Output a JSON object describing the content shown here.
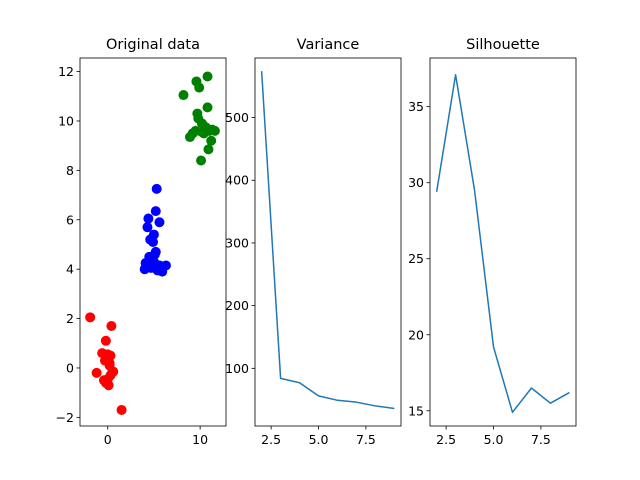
{
  "chart_data": [
    {
      "type": "scatter",
      "title": "Original data",
      "xlabel": "",
      "ylabel": "",
      "xlim": [
        -3.0,
        12.8
      ],
      "ylim": [
        -2.35,
        12.55
      ],
      "xticks": [
        0,
        10
      ],
      "yticks": [
        -2,
        0,
        2,
        4,
        6,
        8,
        10,
        12
      ],
      "series": [
        {
          "color": "#ff0000",
          "x": [
            -1.9,
            -1.2,
            -0.6,
            -0.2,
            0.4,
            0.3,
            -0.1,
            0.2,
            0.0,
            -0.4,
            0.5,
            -0.2,
            0.1,
            0.3,
            -0.3,
            0.0,
            0.2,
            0.6,
            1.5,
            -0.1
          ],
          "y": [
            2.05,
            -0.2,
            0.6,
            1.1,
            1.7,
            0.5,
            0.4,
            0.2,
            0.55,
            -0.5,
            -0.15,
            -0.6,
            -0.7,
            -0.3,
            0.3,
            -0.45,
            0.1,
            -0.15,
            -1.7,
            0.45
          ]
        },
        {
          "color": "#0000ff",
          "x": [
            5.3,
            5.2,
            4.4,
            4.3,
            5.6,
            4.6,
            5.0,
            4.9,
            4.5,
            4.1,
            5.1,
            5.6,
            6.3,
            5.9,
            5.4,
            4.8,
            4.0,
            5.2,
            4.7,
            5.0
          ],
          "y": [
            7.25,
            6.35,
            6.05,
            5.7,
            5.9,
            5.2,
            5.4,
            5.1,
            4.5,
            4.25,
            4.6,
            4.15,
            4.15,
            3.9,
            3.95,
            4.25,
            4.0,
            4.7,
            4.05,
            4.3
          ]
        },
        {
          "color": "#008000",
          "x": [
            10.8,
            9.6,
            9.9,
            8.2,
            10.8,
            9.7,
            9.8,
            10.2,
            10.6,
            10.2,
            11.3,
            11.0,
            10.4,
            11.6,
            11.2,
            10.9,
            10.1,
            9.2,
            8.9,
            9.5
          ],
          "y": [
            11.8,
            11.6,
            11.35,
            11.05,
            10.55,
            10.3,
            10.1,
            9.9,
            9.75,
            9.55,
            9.65,
            9.6,
            9.5,
            9.6,
            9.2,
            8.85,
            8.4,
            9.5,
            9.35,
            9.6
          ]
        }
      ]
    },
    {
      "type": "line",
      "title": "Variance",
      "xlabel": "",
      "ylabel": "",
      "xlim": [
        1.65,
        9.35
      ],
      "ylim": [
        8,
        595
      ],
      "xticks": [
        2.5,
        5.0,
        7.5
      ],
      "yticks": [
        100,
        200,
        300,
        400,
        500
      ],
      "series": [
        {
          "color": "#1f77b4",
          "x": [
            2,
            3,
            4,
            5,
            6,
            7,
            8,
            9
          ],
          "y": [
            574,
            84,
            77,
            56,
            49,
            46,
            40,
            36
          ]
        }
      ]
    },
    {
      "type": "line",
      "title": "Silhouette",
      "xlabel": "",
      "ylabel": "",
      "xlim": [
        1.65,
        9.35
      ],
      "ylim": [
        14.0,
        38.2
      ],
      "xticks": [
        2.5,
        5.0,
        7.5
      ],
      "yticks": [
        15,
        20,
        25,
        30,
        35
      ],
      "series": [
        {
          "color": "#1f77b4",
          "x": [
            2,
            3,
            4,
            5,
            6,
            7,
            8,
            9
          ],
          "y": [
            29.4,
            37.1,
            29.5,
            19.2,
            14.9,
            16.5,
            15.5,
            16.2
          ]
        }
      ]
    }
  ]
}
